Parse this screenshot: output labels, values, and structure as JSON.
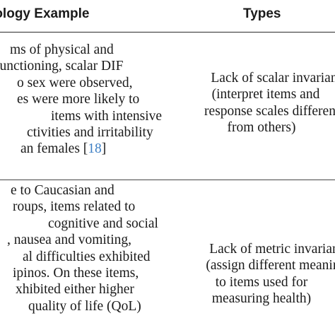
{
  "header": {
    "example_label": "tology Example",
    "types_label": "Types"
  },
  "rows": [
    {
      "example_lines": [
        "ms of physical and",
        "functioning, scalar DIF",
        "o sex were observed,",
        "es were more likely to",
        "items with intensive",
        "ctivities and irritability",
        "an females [",
        "18",
        "]"
      ],
      "type_lines": [
        "Lack of scalar invarian",
        "(interpret items and",
        "response scales differen",
        "from others)"
      ]
    },
    {
      "example_lines": [
        "e to Caucasian and",
        "roups, items related to",
        "cognitive and social",
        ", nausea and vomiting,",
        "al difficulties exhibited",
        "ipinos. On these items,",
        "xhibited either higher",
        "quality of life (QoL)"
      ],
      "type_lines": [
        "Lack of metric invarian",
        "(assign different meanin",
        "to items used for",
        "measuring health)"
      ]
    }
  ]
}
